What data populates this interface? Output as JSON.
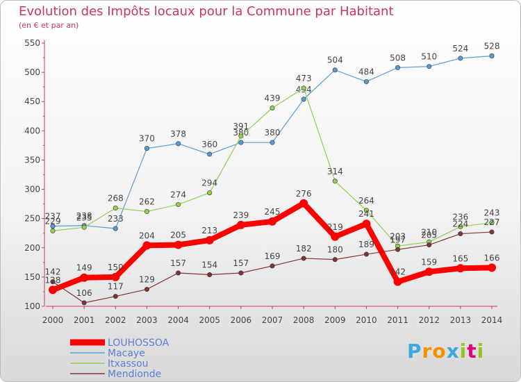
{
  "header": {
    "title": "Evolution des Impôts locaux pour la Commune par Habitant",
    "subtitle": "(en € et par an)"
  },
  "brand": {
    "letters": [
      "P",
      "r",
      "o",
      "x",
      "i",
      "t",
      "i"
    ]
  },
  "chart_data": {
    "type": "line",
    "title": "Evolution des Impôts locaux pour la Commune par Habitant",
    "subtitle": "(en € et par an)",
    "xlabel": "",
    "ylabel": "",
    "categories": [
      "2000",
      "2001",
      "2002",
      "2003",
      "2004",
      "2005",
      "2006",
      "2007",
      "2008",
      "2009",
      "2010",
      "2011",
      "2012",
      "2013",
      "2014"
    ],
    "ylim": [
      100,
      550
    ],
    "yticks": [
      100,
      150,
      200,
      250,
      300,
      350,
      400,
      450,
      500,
      550
    ],
    "grid": false,
    "legend_position": "bottom-left",
    "series": [
      {
        "name": "LOUHOSSOA",
        "color": "#ff0000",
        "values": [
          128,
          149,
          150,
          204,
          205,
          213,
          239,
          245,
          276,
          219,
          241,
          142,
          159,
          165,
          166
        ],
        "labels": [
          "128",
          "149",
          "150",
          "204",
          "205",
          "213",
          "239",
          "245",
          "276",
          "219",
          "241",
          "142",
          "159",
          "165",
          "166"
        ],
        "emphasis": true
      },
      {
        "name": "Macaye",
        "color": "#5b9bd5",
        "values": [
          237,
          238,
          233,
          370,
          378,
          360,
          380,
          380,
          454,
          504,
          484,
          508,
          510,
          524,
          528
        ],
        "emphasis": false
      },
      {
        "name": "Itxassou",
        "color": "#92d050",
        "values": [
          229,
          235,
          268,
          262,
          274,
          294,
          391,
          439,
          473,
          314,
          264,
          203,
          210,
          236,
          243
        ],
        "emphasis": false
      },
      {
        "name": "Mendionde",
        "color": "#7f3535",
        "values": [
          142,
          106,
          117,
          129,
          157,
          154,
          157,
          169,
          182,
          180,
          189,
          197,
          205,
          224,
          227
        ],
        "emphasis": false
      }
    ]
  }
}
